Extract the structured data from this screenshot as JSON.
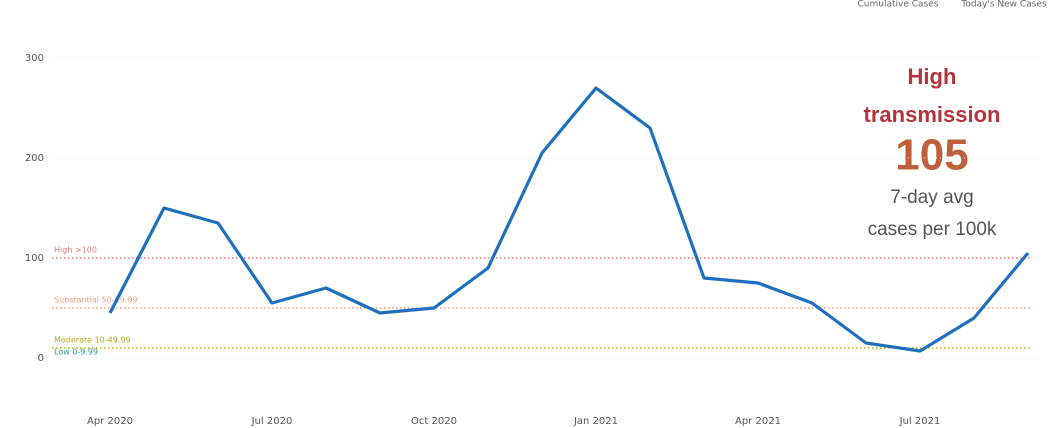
{
  "chart_data": {
    "type": "line",
    "tabs": [
      "Cumulative Cases",
      "Today's New Cases"
    ],
    "x": [
      "2020-04",
      "2020-05",
      "2020-06",
      "2020-07",
      "2020-08",
      "2020-09",
      "2020-10",
      "2020-11",
      "2020-12",
      "2021-01",
      "2021-02",
      "2021-03",
      "2021-04",
      "2021-05",
      "2021-06",
      "2021-07",
      "2021-08",
      "2021-09"
    ],
    "series": [
      {
        "name": "7-day avg cases per 100k",
        "color": "#1f6fbf",
        "values": [
          45,
          150,
          135,
          55,
          70,
          45,
          50,
          90,
          205,
          270,
          230,
          80,
          75,
          55,
          15,
          7,
          40,
          105
        ]
      }
    ],
    "xlim": [
      "2020-03",
      "2021-09"
    ],
    "xticks": [
      {
        "value": "2020-04",
        "label": "Apr 2020"
      },
      {
        "value": "2020-07",
        "label": "Jul 2020"
      },
      {
        "value": "2020-10",
        "label": "Oct 2020"
      },
      {
        "value": "2021-01",
        "label": "Jan 2021"
      },
      {
        "value": "2021-04",
        "label": "Apr 2021"
      },
      {
        "value": "2021-07",
        "label": "Jul 2021"
      }
    ],
    "ylim": [
      0,
      350
    ],
    "yticks": [
      0,
      100,
      200,
      300
    ],
    "grid": true,
    "thresholds": [
      {
        "label": "High >100",
        "value": 100,
        "color": "#e87878",
        "line": true
      },
      {
        "label": "Substantial 50-99.99",
        "value": 50,
        "color": "#f0a080",
        "line": true
      },
      {
        "label": "Moderate 10-49.99",
        "value": 10,
        "color": "#b8a820",
        "line": true
      },
      {
        "label": "Low 0-9.99",
        "value": 0,
        "color": "#2a9d8f",
        "line": false
      }
    ],
    "annotation": {
      "level": "High transmission",
      "value": 105,
      "caption": "7-day avg cases per 100k"
    }
  }
}
